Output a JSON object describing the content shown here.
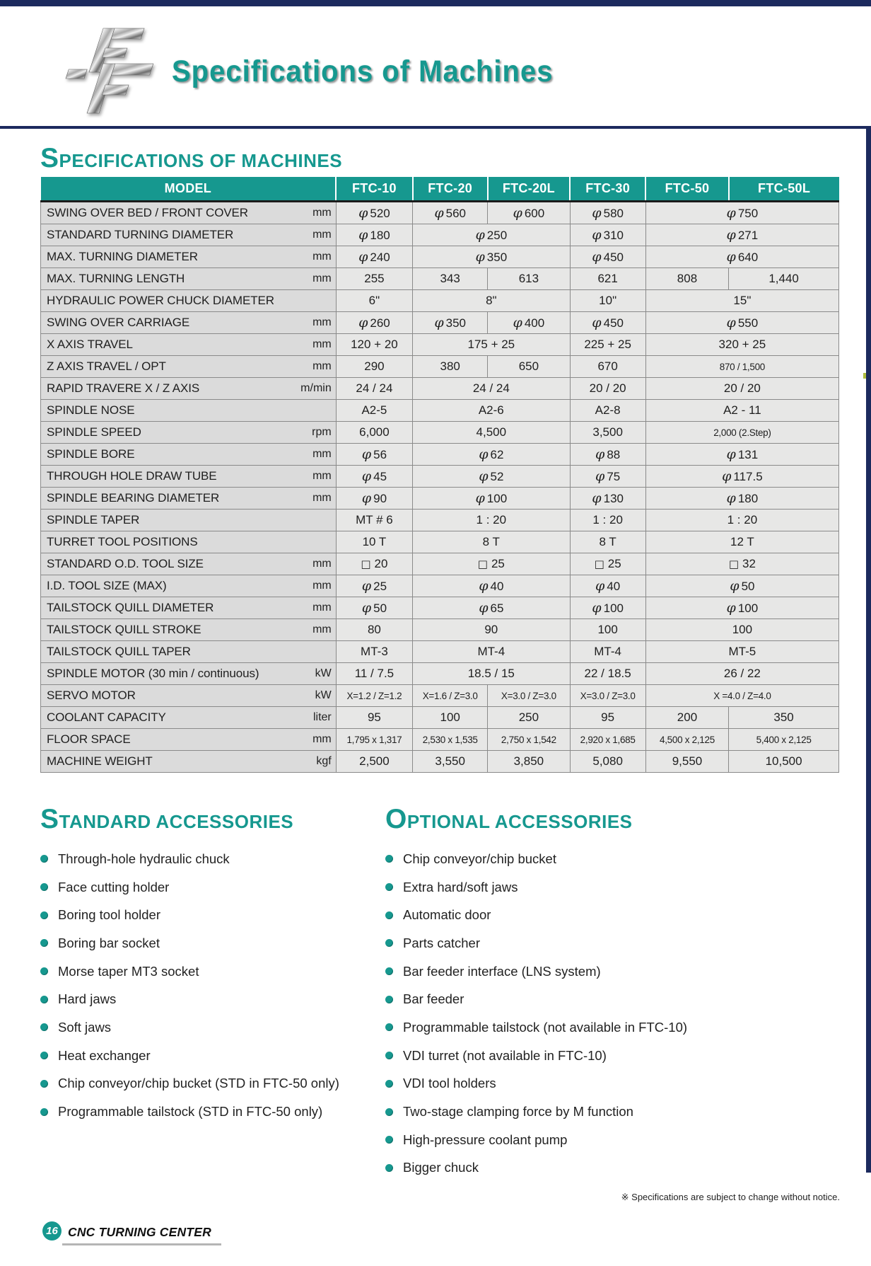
{
  "header": {
    "title": "Specifications of Machines"
  },
  "colors": {
    "teal": "#16988F",
    "navy": "#1C2A5E"
  },
  "spec_section": {
    "title_first": "S",
    "title_rest": "PECIFICATIONS OF MACHINES"
  },
  "spec_table": {
    "columns": [
      "MODEL",
      "FTC-10",
      "FTC-20",
      "FTC-20L",
      "FTC-30",
      "FTC-50",
      "FTC-50L"
    ],
    "rows": [
      {
        "label": "SWING OVER BED / FRONT COVER",
        "unit": "mm",
        "cells": [
          "φ 520",
          "φ 560",
          "φ 600",
          "φ 580",
          {
            "t": "φ 750",
            "s": 2
          }
        ]
      },
      {
        "label": "STANDARD TURNING DIAMETER",
        "unit": "mm",
        "cells": [
          "φ 180",
          {
            "t": "φ 250",
            "s": 2
          },
          "φ 310",
          {
            "t": "φ 271",
            "s": 2
          }
        ]
      },
      {
        "label": "MAX. TURNING DIAMETER",
        "unit": "mm",
        "cells": [
          "φ 240",
          {
            "t": "φ 350",
            "s": 2
          },
          "φ 450",
          {
            "t": "φ 640",
            "s": 2
          }
        ]
      },
      {
        "label": "MAX. TURNING LENGTH",
        "unit": "mm",
        "cells": [
          "255",
          "343",
          "613",
          "621",
          "808",
          "1,440"
        ]
      },
      {
        "label": "HYDRAULIC POWER CHUCK DIAMETER",
        "unit": "",
        "cells": [
          "6\"",
          {
            "t": "8\"",
            "s": 2
          },
          "10\"",
          {
            "t": "15\"",
            "s": 2
          }
        ]
      },
      {
        "label": "SWING OVER CARRIAGE",
        "unit": "mm",
        "cells": [
          "φ 260",
          "φ 350",
          "φ 400",
          "φ 450",
          {
            "t": "φ 550",
            "s": 2
          }
        ]
      },
      {
        "label": "X  AXIS TRAVEL",
        "unit": "mm",
        "cells": [
          "120 + 20",
          {
            "t": "175 + 25",
            "s": 2
          },
          "225 + 25",
          {
            "t": "320 + 25",
            "s": 2
          }
        ]
      },
      {
        "label": "Z  AXIS TRAVEL / OPT",
        "unit": "mm",
        "cells": [
          "290",
          "380",
          "650",
          "670",
          {
            "t": "870 / 1,500",
            "s": 2
          }
        ]
      },
      {
        "label": "RAPID TRAVERE X / Z  AXIS",
        "unit": "m/min",
        "cells": [
          "24 / 24",
          {
            "t": "24 / 24",
            "s": 2
          },
          "20 / 20",
          {
            "t": "20 / 20",
            "s": 2
          }
        ]
      },
      {
        "label": "SPINDLE NOSE",
        "unit": "",
        "cells": [
          "A2-5",
          {
            "t": "A2-6",
            "s": 2
          },
          "A2-8",
          {
            "t": "A2 - 11",
            "s": 2
          }
        ]
      },
      {
        "label": "SPINDLE SPEED",
        "unit": "rpm",
        "cells": [
          "6,000",
          {
            "t": "4,500",
            "s": 2
          },
          "3,500",
          {
            "t": "2,000 (2.Step)",
            "s": 2
          }
        ]
      },
      {
        "label": "SPINDLE BORE",
        "unit": "mm",
        "cells": [
          "φ 56",
          {
            "t": "φ 62",
            "s": 2
          },
          "φ 88",
          {
            "t": "φ 131",
            "s": 2
          }
        ]
      },
      {
        "label": "THROUGH HOLE DRAW TUBE",
        "unit": "mm",
        "cells": [
          "φ 45",
          {
            "t": "φ 52",
            "s": 2
          },
          "φ 75",
          {
            "t": "φ 117.5",
            "s": 2
          }
        ]
      },
      {
        "label": "SPINDLE BEARING DIAMETER",
        "unit": "mm",
        "cells": [
          "φ 90",
          {
            "t": "φ 100",
            "s": 2
          },
          "φ 130",
          {
            "t": "φ 180",
            "s": 2
          }
        ]
      },
      {
        "label": "SPINDLE TAPER",
        "unit": "",
        "cells": [
          "MT # 6",
          {
            "t": "1 : 20",
            "s": 2
          },
          "1 : 20",
          {
            "t": "1 : 20",
            "s": 2
          }
        ]
      },
      {
        "label": "TURRET TOOL POSITIONS",
        "unit": "",
        "cells": [
          "10 T",
          {
            "t": "8 T",
            "s": 2
          },
          "8 T",
          {
            "t": "12 T",
            "s": 2
          }
        ]
      },
      {
        "label": "STANDARD O.D. TOOL SIZE",
        "unit": "mm",
        "cells": [
          "□ 20",
          {
            "t": "□ 25",
            "s": 2
          },
          "□ 25",
          {
            "t": "□ 32",
            "s": 2
          }
        ]
      },
      {
        "label": "I.D. TOOL SIZE (MAX)",
        "unit": "mm",
        "cells": [
          "φ 25",
          {
            "t": "φ 40",
            "s": 2
          },
          "φ 40",
          {
            "t": "φ 50",
            "s": 2
          }
        ]
      },
      {
        "label": "TAILSTOCK QUILL DIAMETER",
        "unit": "mm",
        "cells": [
          "φ 50",
          {
            "t": "φ 65",
            "s": 2
          },
          "φ 100",
          {
            "t": "φ 100",
            "s": 2
          }
        ]
      },
      {
        "label": "TAILSTOCK QUILL STROKE",
        "unit": "mm",
        "cells": [
          "80",
          {
            "t": "90",
            "s": 2
          },
          "100",
          {
            "t": "100",
            "s": 2
          }
        ]
      },
      {
        "label": "TAILSTOCK QUILL TAPER",
        "unit": "",
        "cells": [
          "MT-3",
          {
            "t": "MT-4",
            "s": 2
          },
          "MT-4",
          {
            "t": "MT-5",
            "s": 2
          }
        ]
      },
      {
        "label": "SPINDLE MOTOR (30 min / continuous)",
        "unit": "kW",
        "cells": [
          "11 / 7.5",
          {
            "t": "18.5 / 15",
            "s": 2
          },
          "22 / 18.5",
          {
            "t": "26 / 22",
            "s": 2
          }
        ]
      },
      {
        "label": "SERVO MOTOR",
        "unit": "kW",
        "cells": [
          "X=1.2 / Z=1.2",
          "X=1.6 / Z=3.0",
          "X=3.0 / Z=3.0",
          "X=3.0 / Z=3.0",
          {
            "t": "X =4.0 / Z=4.0",
            "s": 2
          }
        ]
      },
      {
        "label": "COOLANT CAPACITY",
        "unit": "liter",
        "cells": [
          "95",
          "100",
          "250",
          "95",
          "200",
          "350"
        ]
      },
      {
        "label": "FLOOR SPACE",
        "unit": "mm",
        "cells": [
          "1,795 x 1,317",
          "2,530 x 1,535",
          "2,750 x 1,542",
          "2,920 x 1,685",
          "4,500 x 2,125",
          "5,400 x 2,125"
        ]
      },
      {
        "label": "MACHINE WEIGHT",
        "unit": "kgf",
        "cells": [
          "2,500",
          "3,550",
          "3,850",
          "5,080",
          "9,550",
          "10,500"
        ]
      }
    ]
  },
  "standard_accessories": {
    "title_first": "S",
    "title_rest": "TANDARD ACCESSORIES",
    "items": [
      "Through-hole hydraulic chuck",
      "Face cutting holder",
      "Boring tool holder",
      "Boring bar socket",
      "Morse taper MT3 socket",
      "Hard jaws",
      "Soft jaws",
      "Heat exchanger",
      "Chip conveyor/chip bucket (STD in FTC-50 only)",
      "Programmable tailstock (STD in FTC-50 only)"
    ]
  },
  "optional_accessories": {
    "title_first": "O",
    "title_rest": "PTIONAL ACCESSORIES",
    "items": [
      "Chip conveyor/chip bucket",
      "Extra hard/soft jaws",
      "Automatic door",
      "Parts catcher",
      "Bar feeder interface (LNS system)",
      "Bar feeder",
      "Programmable tailstock (not available in FTC-10)",
      "VDI turret (not available in FTC-10)",
      "VDI tool holders",
      "Two-stage clamping force by M function",
      "High-pressure coolant pump",
      "Bigger chuck"
    ]
  },
  "footnote": "※ Specifications are subject to change without notice.",
  "footer": {
    "page_number": "16",
    "label": "CNC TURNING CENTER"
  }
}
